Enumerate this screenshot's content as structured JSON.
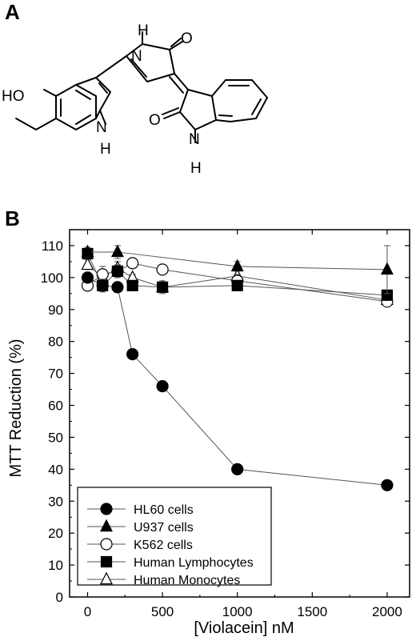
{
  "panels": {
    "a": "A",
    "b": "B"
  },
  "molecule": {
    "labels": {
      "ho": "HO",
      "n_top": "N",
      "h_top": "H",
      "o_right": "O",
      "n_left": "N",
      "h_left": "H",
      "o_bottom": "O",
      "n_bottom": "N",
      "h_bottom": "H"
    }
  },
  "chart_data": {
    "type": "line",
    "xlabel": "[Violacein] nM",
    "ylabel": "MTT Reduction (%)",
    "xlim": [
      -120,
      2150
    ],
    "ylim": [
      0,
      115
    ],
    "xticks": [
      0,
      500,
      1000,
      1500,
      2000
    ],
    "yticks": [
      0,
      10,
      20,
      30,
      40,
      50,
      60,
      70,
      80,
      90,
      100,
      110
    ],
    "grid": false,
    "legend_position": "bottom-left",
    "series": [
      {
        "name": "HL60 cells",
        "marker": "filled-circle",
        "x": [
          0,
          100,
          200,
          300,
          500,
          1000,
          2000
        ],
        "y": [
          100,
          97.5,
          97,
          76,
          66,
          40,
          35
        ],
        "err": [
          1,
          1.5,
          1.5,
          0.8,
          1,
          0.5,
          1
        ]
      },
      {
        "name": "U937 cells",
        "marker": "filled-triangle",
        "x": [
          0,
          200,
          1000,
          2000
        ],
        "y": [
          108,
          108,
          103.5,
          102.5
        ],
        "err": [
          1.5,
          2,
          1.5,
          7.5
        ]
      },
      {
        "name": "K562 cells",
        "marker": "open-circle",
        "x": [
          0,
          100,
          200,
          300,
          500,
          1000,
          2000
        ],
        "y": [
          97.5,
          101,
          102,
          104.5,
          102.5,
          99,
          92.5
        ],
        "err": [
          1,
          2.5,
          2,
          1,
          1,
          2,
          1
        ]
      },
      {
        "name": "Human Lymphocytes",
        "marker": "filled-square",
        "x": [
          0,
          100,
          200,
          300,
          500,
          1000,
          2000
        ],
        "y": [
          107.5,
          97.5,
          102,
          97.5,
          97,
          97.5,
          94.5
        ],
        "err": [
          1.5,
          2,
          2,
          1,
          2,
          1.5,
          1
        ]
      },
      {
        "name": "Human Monocytes",
        "marker": "open-triangle",
        "x": [
          0,
          100,
          200,
          300,
          500,
          1000,
          2000
        ],
        "y": [
          104,
          100,
          103,
          100,
          97,
          100.5,
          93
        ],
        "err": [
          1.5,
          1.5,
          2,
          1,
          1.5,
          3.5,
          1
        ]
      }
    ]
  }
}
